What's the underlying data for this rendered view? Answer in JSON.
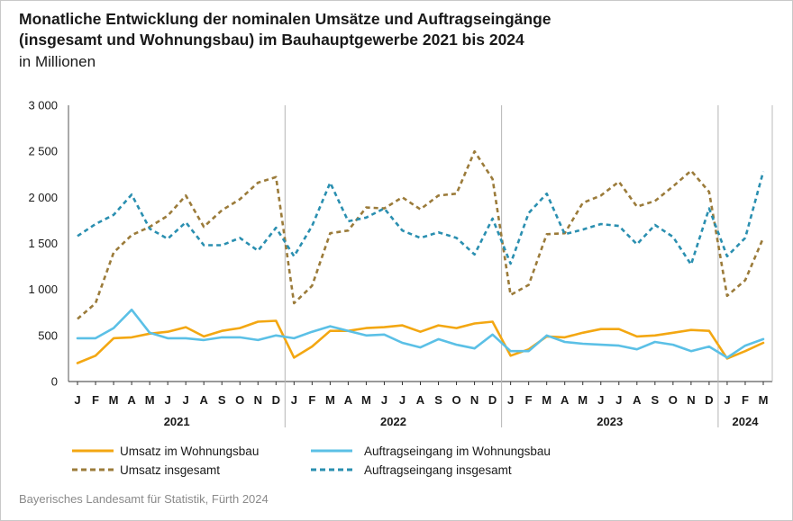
{
  "title_line1": "Monatliche Entwicklung der nominalen Umsätze und Auftragseingänge",
  "title_line2": "(insgesamt und Wohnungsbau) im Bauhauptgewerbe 2021 bis 2024",
  "subtitle": "in Millionen",
  "source": "Bayerisches Landesamt für Statistik, Fürth 2024",
  "chart_data": {
    "type": "line",
    "ylim": [
      0,
      3000
    ],
    "yticks": [
      0,
      500,
      1000,
      1500,
      2000,
      2500,
      3000
    ],
    "ytick_labels": [
      "0",
      "500",
      "1 000",
      "1 500",
      "2 000",
      "2 500",
      "3 000"
    ],
    "grid": "vertical separators between years",
    "legend_position": "bottom",
    "years": [
      {
        "label": "2021",
        "months": 12
      },
      {
        "label": "2022",
        "months": 12
      },
      {
        "label": "2023",
        "months": 12
      },
      {
        "label": "2024",
        "months": 3
      }
    ],
    "month_labels": [
      "J",
      "F",
      "M",
      "A",
      "M",
      "J",
      "J",
      "A",
      "S",
      "O",
      "N",
      "D",
      "J",
      "F",
      "M",
      "A",
      "M",
      "J",
      "J",
      "A",
      "S",
      "O",
      "N",
      "D",
      "J",
      "F",
      "M",
      "A",
      "M",
      "J",
      "J",
      "A",
      "S",
      "O",
      "N",
      "D",
      "J",
      "F",
      "M"
    ],
    "series": [
      {
        "name": "Umsatz im Wohnungsbau",
        "color": "#f3a712",
        "style": "solid",
        "values": [
          200,
          280,
          470,
          480,
          520,
          540,
          590,
          490,
          550,
          580,
          650,
          660,
          260,
          380,
          550,
          550,
          580,
          590,
          610,
          540,
          610,
          580,
          630,
          650,
          280,
          350,
          490,
          480,
          530,
          570,
          570,
          490,
          500,
          530,
          560,
          550,
          250,
          330,
          420
        ]
      },
      {
        "name": "Auftragseingang im Wohnungsbau",
        "color": "#5bc0e6",
        "style": "solid",
        "values": [
          470,
          470,
          580,
          780,
          530,
          470,
          470,
          450,
          480,
          480,
          450,
          500,
          470,
          540,
          600,
          550,
          500,
          510,
          420,
          370,
          460,
          400,
          360,
          510,
          330,
          330,
          500,
          430,
          410,
          400,
          390,
          350,
          430,
          400,
          330,
          380,
          260,
          390,
          460
        ]
      },
      {
        "name": "Umsatz insgesamt",
        "color": "#9b7b3a",
        "style": "dashed",
        "values": [
          680,
          850,
          1400,
          1590,
          1680,
          1800,
          2020,
          1680,
          1860,
          1980,
          2160,
          2220,
          850,
          1040,
          1610,
          1640,
          1890,
          1880,
          2000,
          1870,
          2020,
          2040,
          2500,
          2200,
          940,
          1050,
          1600,
          1610,
          1940,
          2020,
          2170,
          1900,
          1960,
          2120,
          2290,
          2060,
          930,
          1100,
          1560
        ]
      },
      {
        "name": "Auftragseingang insgesamt",
        "color": "#2a8fb0",
        "style": "dashed",
        "values": [
          1580,
          1710,
          1810,
          2030,
          1660,
          1550,
          1730,
          1480,
          1480,
          1560,
          1420,
          1670,
          1360,
          1690,
          2160,
          1740,
          1780,
          1880,
          1640,
          1560,
          1620,
          1560,
          1380,
          1770,
          1280,
          1830,
          2040,
          1600,
          1650,
          1710,
          1690,
          1490,
          1700,
          1570,
          1270,
          1880,
          1360,
          1560,
          2280
        ]
      }
    ],
    "legend_order": [
      0,
      1,
      2,
      3
    ]
  }
}
